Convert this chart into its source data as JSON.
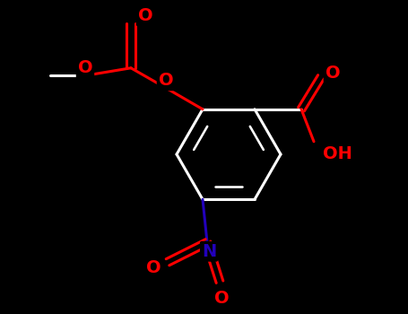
{
  "bg_color": "#000000",
  "bond_color": "#ffffff",
  "atom_colors": {
    "O": "#ff0000",
    "N": "#2200bb",
    "C": "#ffffff"
  },
  "figsize": [
    4.55,
    3.5
  ],
  "dpi": 100,
  "bond_lw": 2.2,
  "font_size": 14
}
